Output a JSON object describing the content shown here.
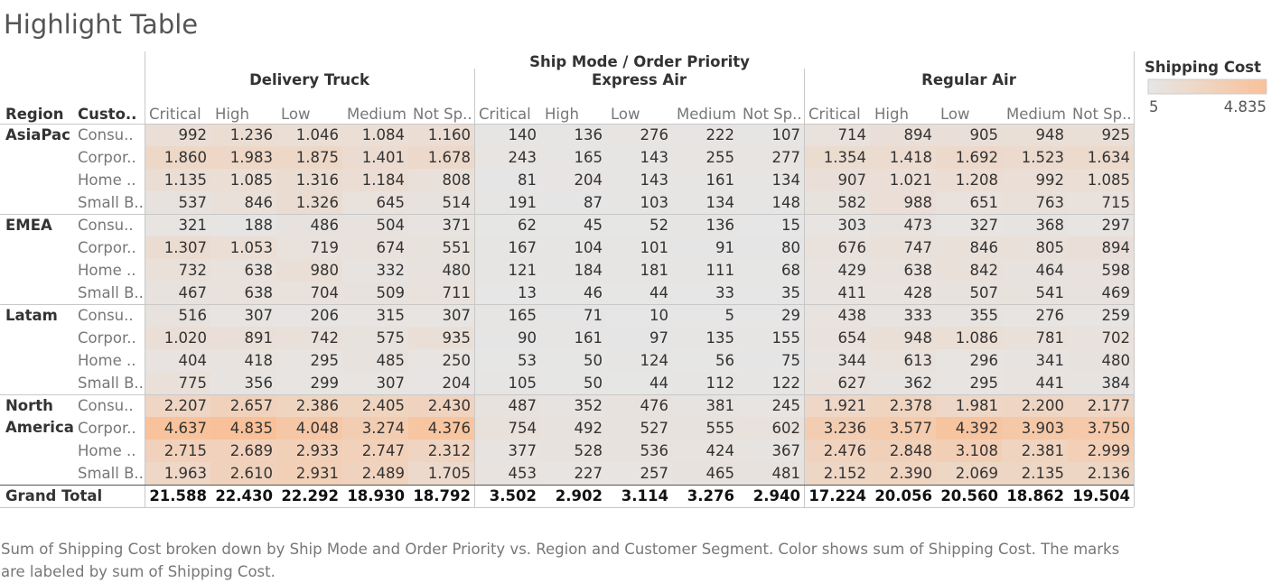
{
  "title": "Highlight Table",
  "caption": "Sum of Shipping Cost broken down by Ship Mode and Order Priority vs. Region and Customer Segment.  Color shows sum of Shipping Cost.  The marks are labeled by sum of Shipping Cost.",
  "legend": {
    "title": "Shipping Cost",
    "min_label": "5",
    "max_label": "4.835",
    "min_value": 5,
    "max_value": 4835,
    "color_low": "#e6e6e6",
    "color_high": "#f9c199"
  },
  "colors": {
    "header_text": "#333333",
    "label_text": "#777777",
    "grid_line": "#c8c8c8"
  },
  "chart_data": {
    "type": "heatmap",
    "column_header_title": "Ship Mode / Order Priority",
    "row_header_labels": [
      "Region",
      "Custo.."
    ],
    "ship_modes": [
      "Delivery Truck",
      "Express Air",
      "Regular Air"
    ],
    "priorities": [
      "Critical",
      "High",
      "Low",
      "Medium",
      "Not Sp.."
    ],
    "segments": [
      "Consu..",
      "Corpor..",
      "Home ..",
      "Small B.."
    ],
    "regions": [
      {
        "name": "AsiaPac",
        "lines": [
          "AsiaPac"
        ],
        "rows": [
          [
            "992",
            "1.236",
            "1.046",
            "1.084",
            "1.160",
            "140",
            "136",
            "276",
            "222",
            "107",
            "714",
            "894",
            "905",
            "948",
            "925"
          ],
          [
            "1.860",
            "1.983",
            "1.875",
            "1.401",
            "1.678",
            "243",
            "165",
            "143",
            "255",
            "277",
            "1.354",
            "1.418",
            "1.692",
            "1.523",
            "1.634"
          ],
          [
            "1.135",
            "1.085",
            "1.316",
            "1.184",
            "808",
            "81",
            "204",
            "143",
            "161",
            "134",
            "907",
            "1.021",
            "1.208",
            "992",
            "1.085"
          ],
          [
            "537",
            "846",
            "1.326",
            "645",
            "514",
            "191",
            "87",
            "103",
            "134",
            "148",
            "582",
            "988",
            "651",
            "763",
            "715"
          ]
        ]
      },
      {
        "name": "EMEA",
        "lines": [
          "EMEA"
        ],
        "rows": [
          [
            "321",
            "188",
            "486",
            "504",
            "371",
            "62",
            "45",
            "52",
            "136",
            "15",
            "303",
            "473",
            "327",
            "368",
            "297"
          ],
          [
            "1.307",
            "1.053",
            "719",
            "674",
            "551",
            "167",
            "104",
            "101",
            "91",
            "80",
            "676",
            "747",
            "846",
            "805",
            "894"
          ],
          [
            "732",
            "638",
            "980",
            "332",
            "480",
            "121",
            "184",
            "181",
            "111",
            "68",
            "429",
            "638",
            "842",
            "464",
            "598"
          ],
          [
            "467",
            "638",
            "704",
            "509",
            "711",
            "13",
            "46",
            "44",
            "33",
            "35",
            "411",
            "428",
            "507",
            "541",
            "469"
          ]
        ]
      },
      {
        "name": "Latam",
        "lines": [
          "Latam"
        ],
        "rows": [
          [
            "516",
            "307",
            "206",
            "315",
            "307",
            "165",
            "71",
            "10",
            "5",
            "29",
            "438",
            "333",
            "355",
            "276",
            "259"
          ],
          [
            "1.020",
            "891",
            "742",
            "575",
            "935",
            "90",
            "161",
            "97",
            "135",
            "155",
            "654",
            "948",
            "1.086",
            "781",
            "702"
          ],
          [
            "404",
            "418",
            "295",
            "485",
            "250",
            "53",
            "50",
            "124",
            "56",
            "75",
            "344",
            "613",
            "296",
            "341",
            "480"
          ],
          [
            "775",
            "356",
            "299",
            "307",
            "204",
            "105",
            "50",
            "44",
            "112",
            "122",
            "627",
            "362",
            "295",
            "441",
            "384"
          ]
        ]
      },
      {
        "name": "North America",
        "lines": [
          "North",
          "America"
        ],
        "rows": [
          [
            "2.207",
            "2.657",
            "2.386",
            "2.405",
            "2.430",
            "487",
            "352",
            "476",
            "381",
            "245",
            "1.921",
            "2.378",
            "1.981",
            "2.200",
            "2.177"
          ],
          [
            "4.637",
            "4.835",
            "4.048",
            "3.274",
            "4.376",
            "754",
            "492",
            "527",
            "555",
            "602",
            "3.236",
            "3.577",
            "4.392",
            "3.903",
            "3.750"
          ],
          [
            "2.715",
            "2.689",
            "2.933",
            "2.747",
            "2.312",
            "377",
            "528",
            "536",
            "424",
            "367",
            "2.476",
            "2.848",
            "3.108",
            "2.381",
            "2.999"
          ],
          [
            "1.963",
            "2.610",
            "2.931",
            "2.489",
            "1.705",
            "453",
            "227",
            "257",
            "465",
            "481",
            "2.152",
            "2.390",
            "2.069",
            "2.135",
            "2.136"
          ]
        ]
      }
    ],
    "grand_total": {
      "label": "Grand Total",
      "values": [
        "21.588",
        "22.430",
        "22.292",
        "18.930",
        "18.792",
        "3.502",
        "2.902",
        "3.114",
        "3.276",
        "2.940",
        "17.224",
        "20.056",
        "20.560",
        "18.862",
        "19.504"
      ]
    }
  }
}
